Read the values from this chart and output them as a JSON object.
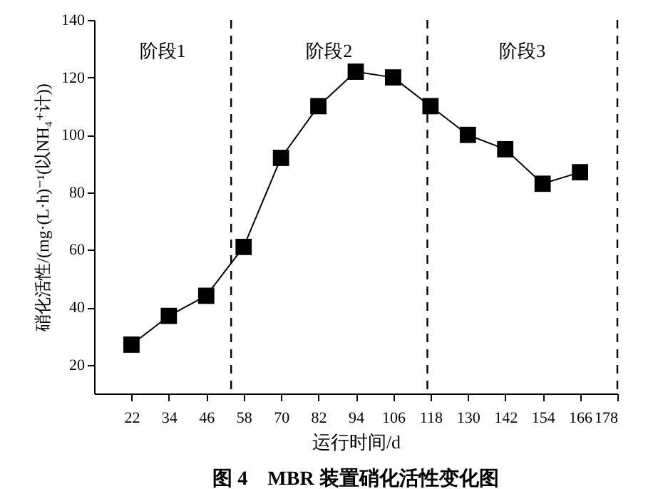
{
  "chart_data": {
    "type": "line",
    "title": "图 4　MBR 装置硝化活性变化图",
    "xlabel": "运行时间/d",
    "ylabel": "硝化活性/(mg·(L·h)⁻¹(以NH₄⁺计))",
    "x": [
      22,
      34,
      46,
      58,
      70,
      82,
      94,
      106,
      118,
      130,
      142,
      154,
      166
    ],
    "series": [
      {
        "color": "#000000",
        "values": [
          27,
          37,
          44,
          61,
          92,
          110,
          122,
          120,
          110,
          100,
          95,
          83,
          87
        ]
      }
    ],
    "xlim": [
      10,
      178
    ],
    "xticks": [
      22,
      34,
      46,
      58,
      70,
      82,
      94,
      106,
      118,
      130,
      142,
      154,
      166,
      178
    ],
    "ylim": [
      10,
      140
    ],
    "yticks": [
      20,
      40,
      60,
      80,
      100,
      120,
      140
    ],
    "marker": "square",
    "line_style": "solid",
    "grid": false,
    "ref_lines": [
      {
        "axis": "x",
        "value": 54,
        "line_style": "dashed",
        "color": "#000000"
      },
      {
        "axis": "x",
        "value": 117,
        "line_style": "dashed",
        "color": "#000000"
      },
      {
        "axis": "x",
        "value": 178,
        "line_style": "dashed",
        "color": "#000000"
      }
    ],
    "annotations": [
      "阶段1",
      "阶段2",
      "阶段3"
    ]
  }
}
